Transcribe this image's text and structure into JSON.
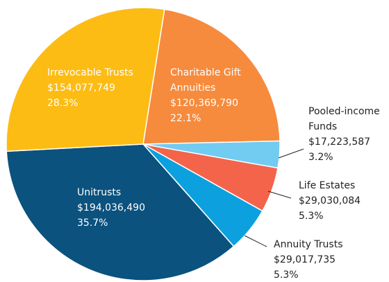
{
  "chart_data": {
    "type": "pie",
    "categories": [
      "Charitable Gift Annuities",
      "Pooled-income Funds",
      "Life Estates",
      "Annuity Trusts",
      "Unitrusts",
      "Irrevocable Trusts"
    ],
    "values": [
      120369790,
      17223587,
      29030084,
      29017735,
      194036490,
      154077749
    ],
    "value_labels": [
      "$120,369,790",
      "$17,223,587",
      "$29,030,084",
      "$29,017,735",
      "$194,036,490",
      "$154,077,749"
    ],
    "percents": [
      22.1,
      3.2,
      5.3,
      5.3,
      35.7,
      28.3
    ],
    "percent_labels": [
      "22.1%",
      "3.2%",
      "5.3%",
      "5.3%",
      "35.7%",
      "28.3%"
    ],
    "colors": [
      "#f68b3d",
      "#72cbf0",
      "#f3644a",
      "#0ca1de",
      "#0b527e",
      "#fdbc14"
    ]
  }
}
